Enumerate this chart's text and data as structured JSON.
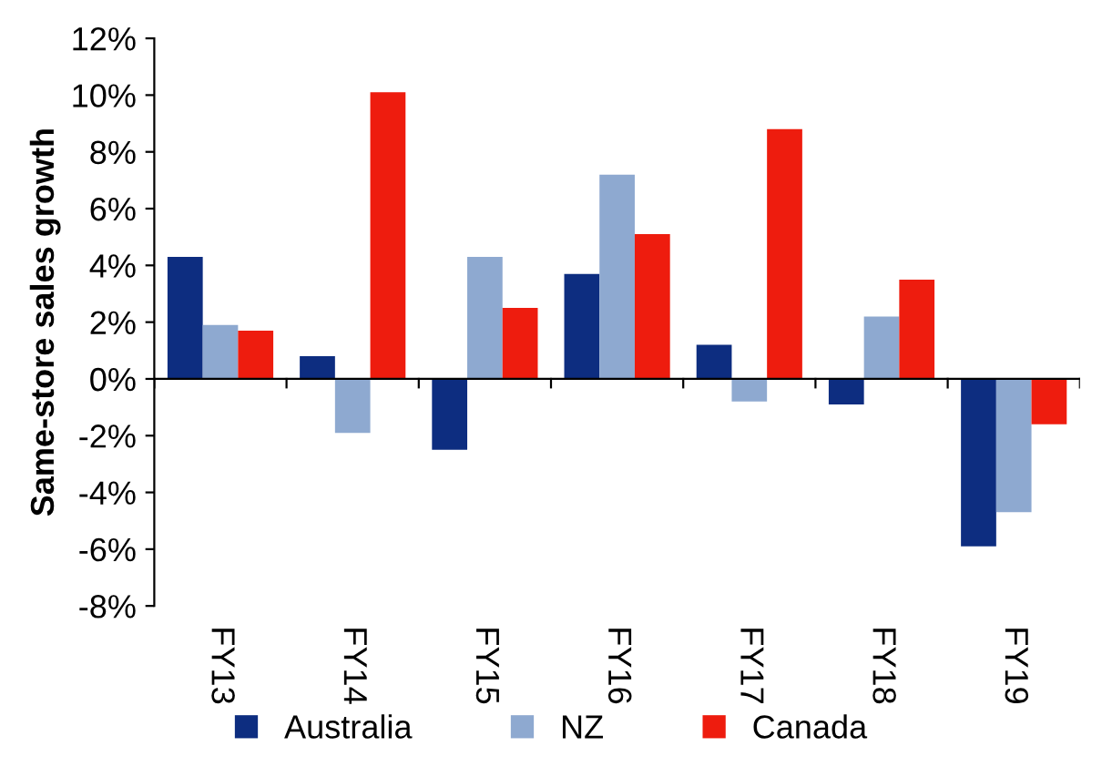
{
  "chart_data": {
    "type": "bar",
    "ylabel": "Same-store sales growth",
    "categories": [
      "FY13",
      "FY14",
      "FY15",
      "FY16",
      "FY17",
      "FY18",
      "FY19"
    ],
    "series": [
      {
        "name": "Australia",
        "color": "#0d2d80",
        "values": [
          4.3,
          0.8,
          -2.5,
          3.7,
          1.2,
          -0.9,
          -5.9
        ]
      },
      {
        "name": "NZ",
        "color": "#8ea9d0",
        "values": [
          1.9,
          -1.9,
          4.3,
          7.2,
          -0.8,
          2.2,
          -4.7
        ]
      },
      {
        "name": "Canada",
        "color": "#ee1c0e",
        "values": [
          1.7,
          10.1,
          2.5,
          5.1,
          8.8,
          3.5,
          -1.6
        ]
      }
    ],
    "ylim": [
      -8,
      12
    ],
    "yticks": [
      {
        "value": -8,
        "label": "-8%"
      },
      {
        "value": -6,
        "label": "-6%"
      },
      {
        "value": -4,
        "label": "-4%"
      },
      {
        "value": -2,
        "label": "-2%"
      },
      {
        "value": 0,
        "label": "0%"
      },
      {
        "value": 2,
        "label": "2%"
      },
      {
        "value": 4,
        "label": "4%"
      },
      {
        "value": 6,
        "label": "6%"
      },
      {
        "value": 8,
        "label": "8%"
      },
      {
        "value": 10,
        "label": "10%"
      },
      {
        "value": 12,
        "label": "12%"
      }
    ],
    "ref_lines": [
      {
        "axis": "y",
        "value": 0,
        "color": "#000000"
      }
    ],
    "grid": false,
    "legend": "bottom"
  }
}
